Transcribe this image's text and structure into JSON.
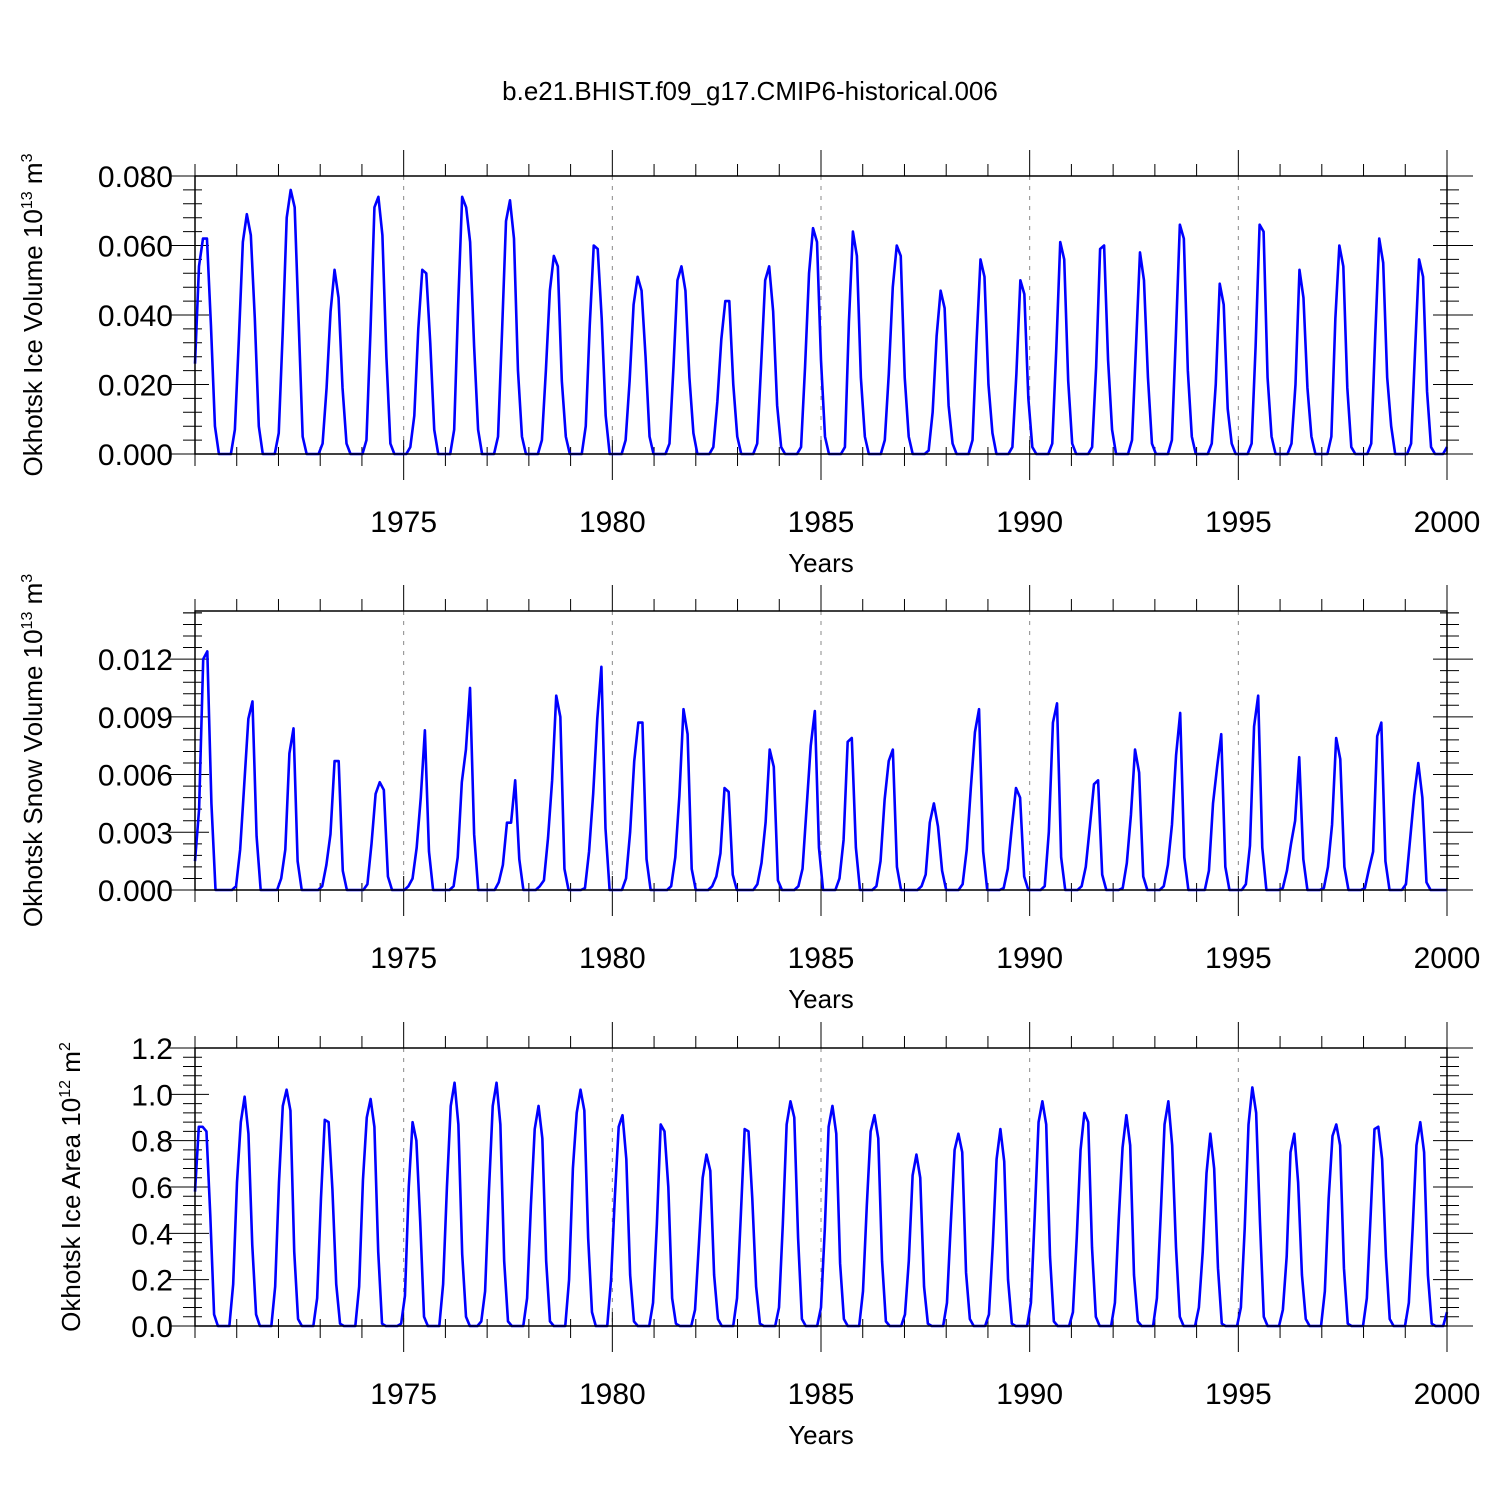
{
  "title": "b.e21.BHIST.f09_g17.CMIP6-historical.006",
  "chart_data": [
    {
      "type": "line",
      "xlabel": "Years",
      "ylabel": {
        "text": "Okhotsk Ice Volume 10",
        "exp1": "13",
        "text2": " m",
        "exp2": "3"
      },
      "xlim": [
        1970,
        2000
      ],
      "ylim": [
        0,
        0.08
      ],
      "x_ticks": [
        1975,
        1980,
        1985,
        1990,
        1995,
        2000
      ],
      "x_tick_labels": [
        "1975",
        "1980",
        "1985",
        "1990",
        "1995",
        "2000"
      ],
      "y_ticks": [
        0,
        0.02,
        0.04,
        0.06,
        0.08
      ],
      "y_tick_labels": [
        "0.000",
        "0.020",
        "0.040",
        "0.060",
        "0.080"
      ],
      "grid": "vertical dashed at 5-year ticks",
      "line_color": "#0000ff",
      "x_start": 1970.0,
      "x_step_months": 1,
      "series": [
        {
          "values": [
            0.026,
            0.054,
            0.062,
            0.062,
            0.037,
            0.008,
            0,
            0,
            0,
            0,
            0.007,
            0.033,
            0.061,
            0.069,
            0.063,
            0.039,
            0.008,
            0,
            0,
            0,
            0,
            0.006,
            0.035,
            0.068,
            0.076,
            0.071,
            0.038,
            0.005,
            0,
            0,
            0,
            0,
            0.003,
            0.019,
            0.041,
            0.053,
            0.045,
            0.019,
            0.003,
            0,
            0,
            0,
            0,
            0.004,
            0.035,
            0.071,
            0.074,
            0.063,
            0.028,
            0.003,
            0,
            0,
            0,
            0,
            0.002,
            0.011,
            0.036,
            0.053,
            0.052,
            0.032,
            0.007,
            0,
            0,
            0,
            0,
            0.007,
            0.043,
            0.074,
            0.071,
            0.061,
            0.031,
            0.007,
            0,
            0,
            0,
            0,
            0.005,
            0.035,
            0.067,
            0.073,
            0.062,
            0.024,
            0.005,
            0,
            0,
            0,
            0,
            0.004,
            0.024,
            0.047,
            0.057,
            0.054,
            0.021,
            0.005,
            0,
            0,
            0,
            0,
            0.008,
            0.037,
            0.06,
            0.059,
            0.039,
            0.011,
            0,
            0,
            0,
            0,
            0.004,
            0.021,
            0.043,
            0.051,
            0.047,
            0.028,
            0.005,
            0,
            0,
            0,
            0,
            0.003,
            0.025,
            0.05,
            0.054,
            0.047,
            0.022,
            0.006,
            0,
            0,
            0,
            0,
            0.002,
            0.015,
            0.033,
            0.044,
            0.044,
            0.02,
            0.005,
            0,
            0,
            0,
            0,
            0.003,
            0.026,
            0.05,
            0.054,
            0.041,
            0.014,
            0.002,
            0,
            0,
            0,
            0,
            0.002,
            0.025,
            0.052,
            0.065,
            0.061,
            0.027,
            0.005,
            0,
            0,
            0,
            0,
            0.002,
            0.038,
            0.064,
            0.057,
            0.022,
            0.005,
            0,
            0,
            0,
            0,
            0.004,
            0.023,
            0.048,
            0.06,
            0.057,
            0.022,
            0.005,
            0,
            0,
            0,
            0,
            0.001,
            0.012,
            0.034,
            0.047,
            0.042,
            0.014,
            0.003,
            0,
            0,
            0,
            0,
            0.004,
            0.032,
            0.056,
            0.051,
            0.02,
            0.006,
            0,
            0,
            0,
            0,
            0.002,
            0.023,
            0.05,
            0.046,
            0.016,
            0.002,
            0,
            0,
            0,
            0,
            0.003,
            0.03,
            0.061,
            0.056,
            0.021,
            0.003,
            0,
            0,
            0,
            0,
            0.002,
            0.025,
            0.059,
            0.06,
            0.027,
            0.007,
            0,
            0,
            0,
            0,
            0.004,
            0.031,
            0.058,
            0.05,
            0.022,
            0.003,
            0,
            0,
            0,
            0,
            0.004,
            0.034,
            0.066,
            0.062,
            0.024,
            0.005,
            0,
            0,
            0,
            0,
            0.003,
            0.02,
            0.049,
            0.043,
            0.013,
            0.003,
            0,
            0,
            0,
            0,
            0.003,
            0.031,
            0.066,
            0.064,
            0.022,
            0.005,
            0,
            0,
            0,
            0,
            0.003,
            0.02,
            0.053,
            0.045,
            0.019,
            0.005,
            0,
            0,
            0,
            0,
            0.005,
            0.039,
            0.06,
            0.054,
            0.019,
            0.002,
            0,
            0,
            0,
            0,
            0.003,
            0.034,
            0.062,
            0.055,
            0.022,
            0.008,
            0,
            0,
            0,
            0,
            0.003,
            0.03,
            0.056,
            0.051,
            0.018,
            0.002,
            0,
            0,
            0,
            0.002
          ]
        }
      ]
    },
    {
      "type": "line",
      "xlabel": "Years",
      "ylabel": {
        "text": "Okhotsk Snow Volume 10",
        "exp1": "13",
        "text2": " m",
        "exp2": "3"
      },
      "xlim": [
        1970,
        2000
      ],
      "ylim": [
        0,
        0.0145
      ],
      "x_ticks": [
        1975,
        1980,
        1985,
        1990,
        1995,
        2000
      ],
      "x_tick_labels": [
        "1975",
        "1980",
        "1985",
        "1990",
        "1995",
        "2000"
      ],
      "y_ticks": [
        0,
        0.003,
        0.006,
        0.009,
        0.012
      ],
      "y_tick_labels": [
        "0.000",
        "0.003",
        "0.006",
        "0.009",
        "0.012"
      ],
      "grid": "vertical dashed at 5-year ticks",
      "line_color": "#0000ff",
      "x_start": 1970.0,
      "x_step_months": 1,
      "series": [
        {
          "values": [
            0.0015,
            0.0042,
            0.012,
            0.0124,
            0.0045,
            0,
            0,
            0,
            0,
            0,
            0.0002,
            0.0021,
            0.0055,
            0.0089,
            0.0098,
            0.0028,
            0,
            0,
            0,
            0,
            0,
            0.0006,
            0.0021,
            0.0071,
            0.0084,
            0.0015,
            0,
            0,
            0,
            0,
            0,
            0.0002,
            0.0013,
            0.0029,
            0.0067,
            0.0067,
            0.001,
            0,
            0,
            0,
            0,
            0,
            0.0003,
            0.0024,
            0.005,
            0.0056,
            0.0052,
            0.0007,
            0,
            0,
            0,
            0,
            0.0002,
            0.0006,
            0.0022,
            0.0048,
            0.0083,
            0.002,
            0,
            0,
            0,
            0,
            0,
            0.0002,
            0.0017,
            0.0056,
            0.0073,
            0.0105,
            0.0029,
            0,
            0,
            0,
            0,
            0,
            0.0004,
            0.0013,
            0.0035,
            0.0035,
            0.0057,
            0.0016,
            0,
            0,
            0,
            0,
            0.0002,
            0.0005,
            0.0027,
            0.0057,
            0.0101,
            0.009,
            0.0011,
            0,
            0,
            0,
            0,
            0.0001,
            0.002,
            0.005,
            0.0089,
            0.0116,
            0.0032,
            0,
            0,
            0,
            0,
            0.0006,
            0.003,
            0.0067,
            0.0087,
            0.0087,
            0.0016,
            0,
            0,
            0,
            0,
            0,
            0.0002,
            0.0017,
            0.0049,
            0.0094,
            0.0081,
            0.0011,
            0,
            0,
            0,
            0,
            0.0002,
            0.0007,
            0.0019,
            0.0053,
            0.0051,
            0.0008,
            0,
            0,
            0,
            0,
            0,
            0.0003,
            0.0014,
            0.0035,
            0.0073,
            0.0064,
            0.0005,
            0,
            0,
            0,
            0,
            0.0002,
            0.0011,
            0.0043,
            0.0075,
            0.0093,
            0.0022,
            0,
            0,
            0,
            0,
            0.0006,
            0.0026,
            0.0077,
            0.0079,
            0.0022,
            0,
            0,
            0,
            0,
            0.0002,
            0.0015,
            0.0047,
            0.0067,
            0.0073,
            0.0012,
            0,
            0,
            0,
            0,
            0,
            0.0002,
            0.0008,
            0.0035,
            0.0045,
            0.0033,
            0.001,
            0,
            0,
            0,
            0,
            0.0003,
            0.0021,
            0.0053,
            0.0082,
            0.0094,
            0.002,
            0,
            0,
            0,
            0,
            0.0001,
            0.0011,
            0.0033,
            0.0053,
            0.0048,
            0.0007,
            0,
            0,
            0,
            0,
            0.0002,
            0.003,
            0.0087,
            0.0097,
            0.0017,
            0,
            0,
            0,
            0,
            0.0002,
            0.0012,
            0.0033,
            0.0055,
            0.0057,
            0.0008,
            0,
            0,
            0,
            0,
            0.0001,
            0.0014,
            0.0039,
            0.0073,
            0.0061,
            0.0007,
            0,
            0,
            0,
            0,
            0.0002,
            0.0013,
            0.0034,
            0.007,
            0.0092,
            0.0017,
            0,
            0,
            0,
            0,
            0,
            0.001,
            0.0045,
            0.0064,
            0.0081,
            0.0012,
            0,
            0,
            0,
            0,
            0.0003,
            0.0023,
            0.0085,
            0.0101,
            0.0022,
            0,
            0,
            0,
            0,
            0.0001,
            0.001,
            0.0024,
            0.0036,
            0.0069,
            0.0016,
            0,
            0,
            0,
            0,
            0.0001,
            0.0012,
            0.0034,
            0.0079,
            0.0068,
            0.0012,
            0,
            0,
            0,
            0,
            0.0001,
            0.0011,
            0.002,
            0.008,
            0.0087,
            0.0015,
            0,
            0,
            0,
            0,
            0.0003,
            0.0026,
            0.0049,
            0.0066,
            0.0048,
            0.0004,
            0,
            0,
            0,
            0,
            0
          ]
        }
      ]
    },
    {
      "type": "line",
      "xlabel": "Years",
      "ylabel": {
        "text": "Okhotsk Ice Area 10",
        "exp1": "12",
        "text2": " m",
        "exp2": "2"
      },
      "xlim": [
        1970,
        2000
      ],
      "ylim": [
        0,
        1.2
      ],
      "x_ticks": [
        1975,
        1980,
        1985,
        1990,
        1995,
        2000
      ],
      "x_tick_labels": [
        "1975",
        "1980",
        "1985",
        "1990",
        "1995",
        "2000"
      ],
      "y_ticks": [
        0,
        0.2,
        0.4,
        0.6,
        0.8,
        1.0,
        1.2
      ],
      "y_tick_labels": [
        "0.0",
        "0.2",
        "0.4",
        "0.6",
        "0.8",
        "1.0",
        "1.2"
      ],
      "grid": "vertical dashed at 5-year ticks",
      "line_color": "#0000ff",
      "x_start": 1970.0,
      "x_step_months": 1,
      "series": [
        {
          "values": [
            0.58,
            0.86,
            0.86,
            0.84,
            0.48,
            0.05,
            0,
            0,
            0,
            0,
            0.18,
            0.62,
            0.88,
            0.99,
            0.83,
            0.35,
            0.05,
            0,
            0,
            0,
            0,
            0.17,
            0.62,
            0.95,
            1.02,
            0.93,
            0.32,
            0.03,
            0,
            0,
            0,
            0,
            0.12,
            0.55,
            0.89,
            0.88,
            0.59,
            0.18,
            0.01,
            0,
            0,
            0,
            0,
            0.17,
            0.63,
            0.9,
            0.98,
            0.86,
            0.32,
            0.01,
            0,
            0,
            0,
            0,
            0.01,
            0.13,
            0.6,
            0.88,
            0.8,
            0.45,
            0.04,
            0,
            0,
            0,
            0,
            0.18,
            0.6,
            0.95,
            1.05,
            0.87,
            0.31,
            0.04,
            0,
            0,
            0,
            0.02,
            0.15,
            0.58,
            0.95,
            1.05,
            0.87,
            0.28,
            0.02,
            0,
            0,
            0,
            0,
            0.12,
            0.52,
            0.85,
            0.95,
            0.81,
            0.28,
            0.02,
            0,
            0,
            0,
            0,
            0.2,
            0.68,
            0.92,
            1.02,
            0.93,
            0.38,
            0.06,
            0,
            0,
            0,
            0,
            0.2,
            0.56,
            0.86,
            0.91,
            0.72,
            0.22,
            0.02,
            0,
            0,
            0,
            0,
            0.1,
            0.44,
            0.87,
            0.84,
            0.6,
            0.12,
            0.01,
            0,
            0,
            0,
            0,
            0.07,
            0.35,
            0.64,
            0.74,
            0.67,
            0.22,
            0.03,
            0,
            0,
            0,
            0,
            0.12,
            0.48,
            0.85,
            0.84,
            0.55,
            0.17,
            0.01,
            0,
            0,
            0,
            0,
            0.08,
            0.44,
            0.87,
            0.97,
            0.9,
            0.38,
            0.03,
            0,
            0,
            0,
            0,
            0.08,
            0.42,
            0.86,
            0.95,
            0.83,
            0.27,
            0.03,
            0,
            0,
            0,
            0,
            0.15,
            0.52,
            0.84,
            0.91,
            0.81,
            0.28,
            0.02,
            0,
            0,
            0,
            0,
            0.05,
            0.28,
            0.65,
            0.74,
            0.64,
            0.17,
            0.01,
            0,
            0,
            0,
            0,
            0.1,
            0.44,
            0.76,
            0.83,
            0.75,
            0.23,
            0.03,
            0,
            0,
            0,
            0,
            0.05,
            0.35,
            0.72,
            0.85,
            0.71,
            0.2,
            0.01,
            0,
            0,
            0,
            0,
            0.1,
            0.48,
            0.88,
            0.97,
            0.87,
            0.3,
            0.02,
            0,
            0,
            0,
            0,
            0.06,
            0.38,
            0.76,
            0.92,
            0.88,
            0.34,
            0.04,
            0,
            0,
            0,
            0,
            0.1,
            0.46,
            0.77,
            0.91,
            0.78,
            0.22,
            0.02,
            0,
            0,
            0,
            0,
            0.12,
            0.48,
            0.87,
            0.97,
            0.78,
            0.34,
            0.04,
            0,
            0,
            0,
            0,
            0.08,
            0.32,
            0.66,
            0.83,
            0.68,
            0.25,
            0.01,
            0,
            0,
            0,
            0,
            0.08,
            0.42,
            0.87,
            1.03,
            0.92,
            0.45,
            0.04,
            0,
            0,
            0,
            0,
            0.07,
            0.3,
            0.75,
            0.83,
            0.62,
            0.22,
            0.03,
            0,
            0,
            0,
            0,
            0.15,
            0.55,
            0.82,
            0.87,
            0.78,
            0.25,
            0.01,
            0,
            0,
            0,
            0,
            0.12,
            0.48,
            0.85,
            0.86,
            0.72,
            0.3,
            0.03,
            0,
            0,
            0,
            0,
            0.1,
            0.42,
            0.78,
            0.88,
            0.75,
            0.22,
            0.01,
            0,
            0,
            0,
            0.06
          ]
        }
      ]
    }
  ]
}
